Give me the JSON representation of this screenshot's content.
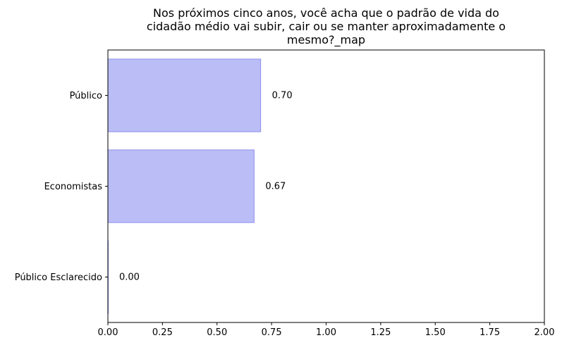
{
  "chart_data": {
    "type": "bar",
    "orientation": "horizontal",
    "title_lines": [
      "Nos próximos cinco anos, você acha que o padrão de vida do",
      "cidadão médio vai subir, cair ou se manter aproximadamente o",
      "mesmo?_map"
    ],
    "categories": [
      "Público",
      "Economistas",
      "Público Esclarecido"
    ],
    "values": [
      0.7,
      0.67,
      0.0
    ],
    "value_labels": [
      "0.70",
      "0.67",
      "0.00"
    ],
    "xlim": [
      0,
      2.0
    ],
    "xticks": [
      0.0,
      0.25,
      0.5,
      0.75,
      1.0,
      1.25,
      1.5,
      1.75,
      2.0
    ],
    "xtick_labels": [
      "0.00",
      "0.25",
      "0.50",
      "0.75",
      "1.00",
      "1.25",
      "1.50",
      "1.75",
      "2.00"
    ],
    "bar_color": "#bbbdf6",
    "bar_edge_color": "#8c8ff0",
    "grid": false,
    "xlabel": "",
    "ylabel": ""
  }
}
